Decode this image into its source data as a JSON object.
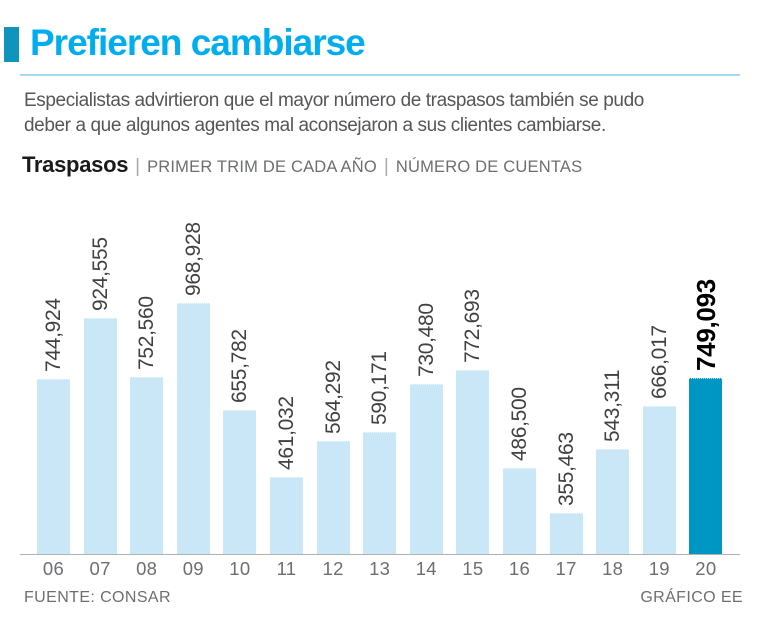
{
  "header": {
    "title": "Prefieren cambiarse",
    "title_color": "#00aeef",
    "block_color": "#0e94bd",
    "rule_color": "#a5d9f1"
  },
  "intro": {
    "line1": "Especialistas advirtieron que el mayor número de traspasos también se pudo",
    "line2": "deber a que algunos agentes mal aconsejaron a sus clientes cambiarse."
  },
  "chart_header": {
    "title": "Traspasos",
    "separator": "|",
    "note1": "PRIMER TRIM DE CADA AÑO",
    "note2": "NÚMERO DE CUENTAS"
  },
  "chart_data": {
    "type": "bar",
    "categories": [
      "06",
      "07",
      "08",
      "09",
      "10",
      "11",
      "12",
      "13",
      "14",
      "15",
      "16",
      "17",
      "18",
      "19",
      "20"
    ],
    "values": [
      744924,
      924555,
      752560,
      968928,
      655782,
      461032,
      564292,
      590171,
      730480,
      772693,
      486500,
      355463,
      543311,
      666017,
      749093
    ],
    "value_labels": [
      "744,924",
      "924,555",
      "752,560",
      "968,928",
      "655,782",
      "461,032",
      "564,292",
      "590,171",
      "730,480",
      "772,693",
      "486,500",
      "355,463",
      "543,311",
      "666,017",
      "749,093"
    ],
    "highlight_index": 14,
    "bar_color": "#c9e7f7",
    "highlight_color": "#0096c4",
    "label_color": "#414042",
    "highlight_label_color": "#000000",
    "axis_line_color": "#b0b2b4",
    "grid": false,
    "legend": false,
    "ylim": [
      235900,
      968928
    ]
  },
  "footer": {
    "source": "FUENTE: CONSAR",
    "credit": "GRÁFICO EE"
  }
}
